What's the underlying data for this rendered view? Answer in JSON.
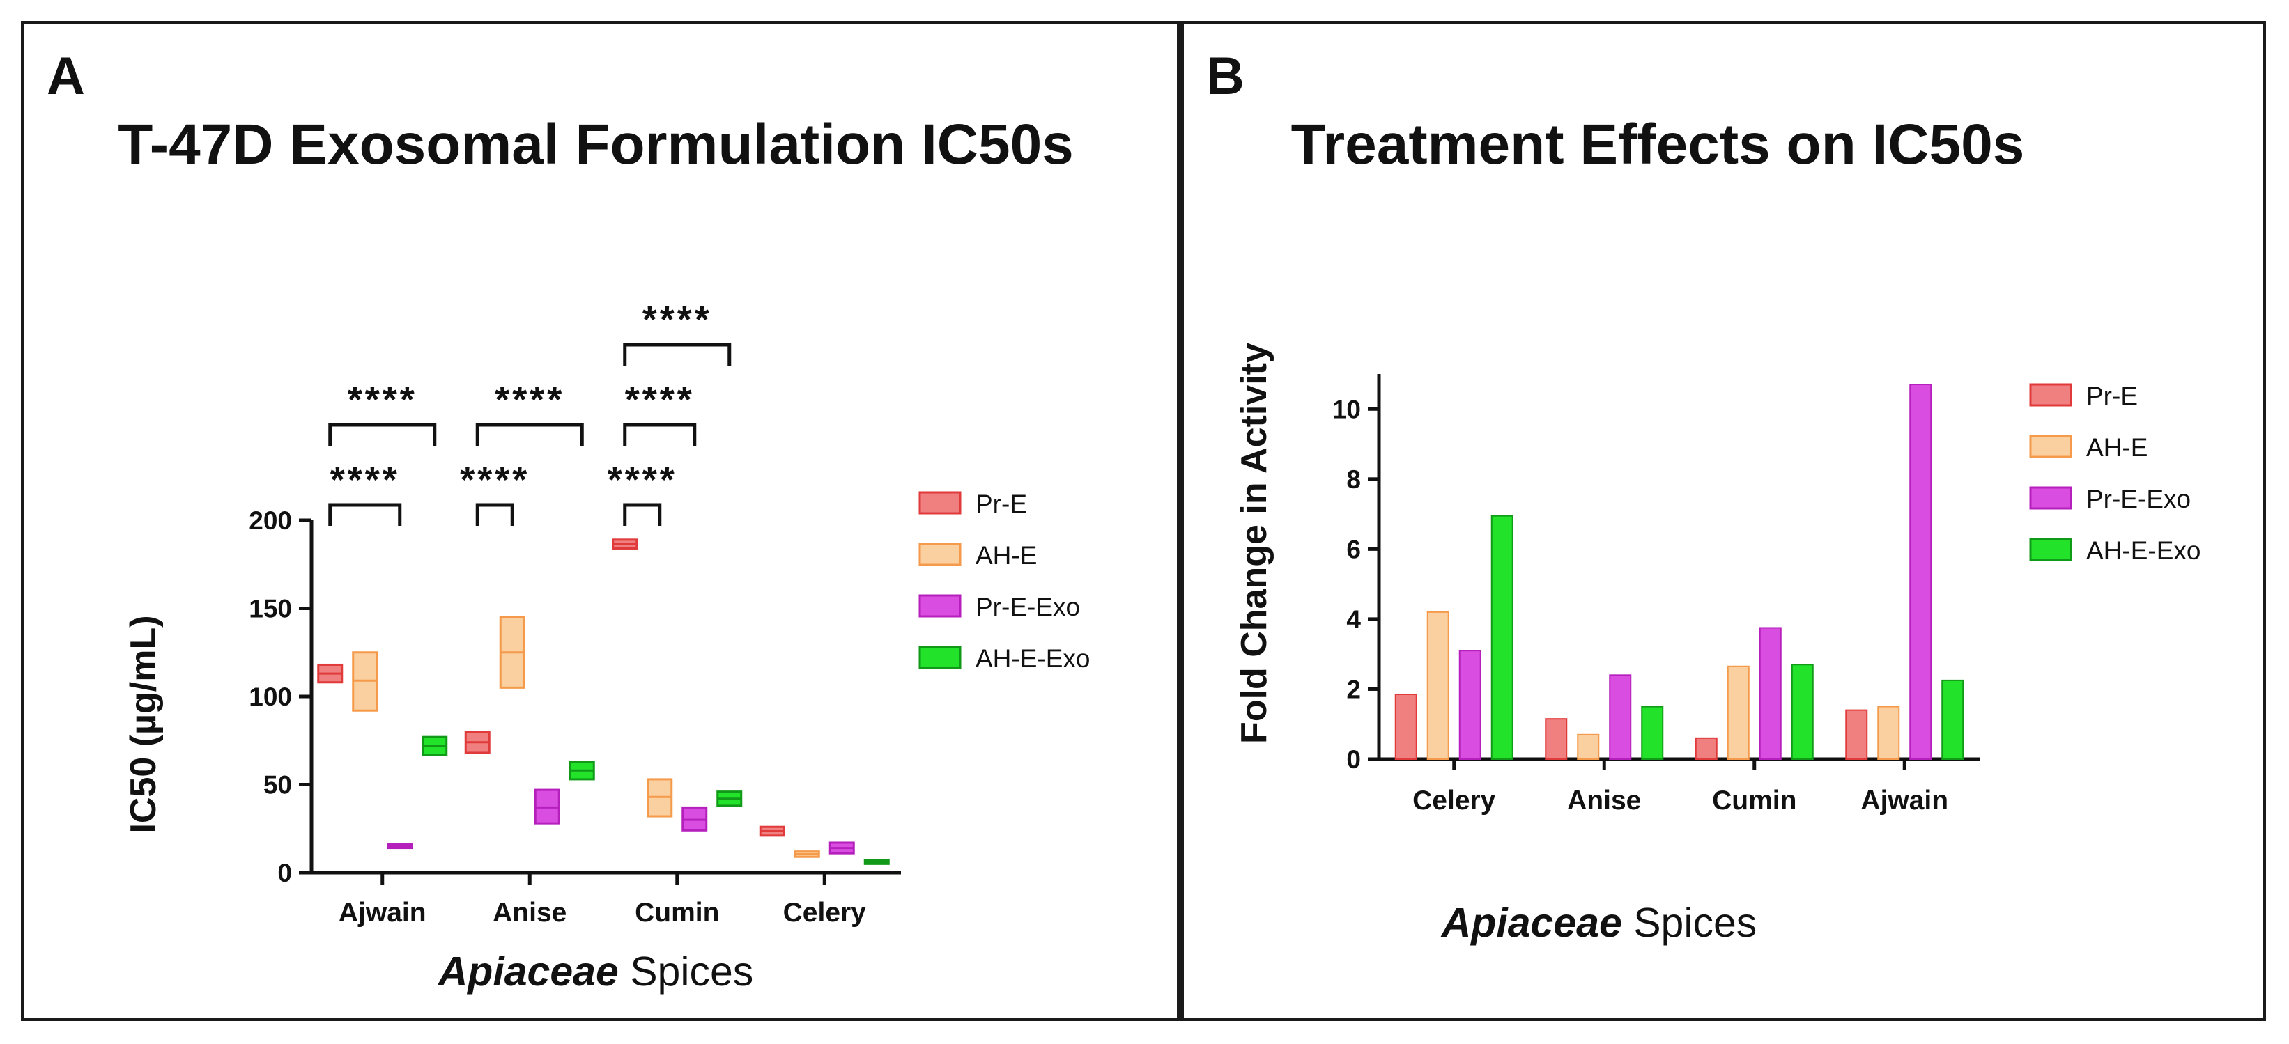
{
  "chart_data": [
    {
      "panel": "A",
      "type": "floating-bar",
      "title": "T-47D Exosomal Formulation IC50s",
      "ylabel": "IC50 (µg/mL)",
      "xlabel_italic": "Apiaceae",
      "xlabel_rest": " Spices",
      "ylim": [
        0,
        200
      ],
      "yticks": [
        0,
        50,
        100,
        150,
        200
      ],
      "categories": [
        "Ajwain",
        "Anise",
        "Cumin",
        "Celery"
      ],
      "series": [
        {
          "name": "Pr-E",
          "fill": "#f08080",
          "stroke": "#e03a3a",
          "boxes": [
            {
              "min": 108,
              "mid": 113,
              "max": 118
            },
            {
              "min": 68,
              "mid": 74,
              "max": 80
            },
            {
              "min": 184,
              "mid": 186.5,
              "max": 189
            },
            {
              "min": 21,
              "mid": 23.5,
              "max": 26
            }
          ]
        },
        {
          "name": "AH-E",
          "fill": "#fad0a0",
          "stroke": "#f59a4a",
          "boxes": [
            {
              "min": 92,
              "mid": 109,
              "max": 125
            },
            {
              "min": 105,
              "mid": 125,
              "max": 145
            },
            {
              "min": 32,
              "mid": 43,
              "max": 53
            },
            {
              "min": 9,
              "mid": 10.5,
              "max": 12
            }
          ]
        },
        {
          "name": "Pr-E-Exo",
          "fill": "#d94ee0",
          "stroke": "#b520bd",
          "boxes": [
            {
              "min": 14,
              "mid": 15,
              "max": 16
            },
            {
              "min": 28,
              "mid": 37,
              "max": 47
            },
            {
              "min": 24,
              "mid": 30,
              "max": 37
            },
            {
              "min": 11,
              "mid": 14,
              "max": 17
            }
          ]
        },
        {
          "name": "AH-E-Exo",
          "fill": "#22e22a",
          "stroke": "#109a18",
          "boxes": [
            {
              "min": 67,
              "mid": 72,
              "max": 77
            },
            {
              "min": 53,
              "mid": 58,
              "max": 63
            },
            {
              "min": 38,
              "mid": 42,
              "max": 46
            },
            {
              "min": 5,
              "mid": 6,
              "max": 7
            }
          ]
        }
      ],
      "significance": [
        {
          "category": "Ajwain",
          "from_series": 0,
          "to_series": 2,
          "label": "****"
        },
        {
          "category": "Ajwain",
          "from_series": 0,
          "to_series": 3,
          "label": "****"
        },
        {
          "category": "Anise",
          "from_series": 0,
          "to_series": 1,
          "label": "****"
        },
        {
          "category": "Anise",
          "from_series": 0,
          "to_series": 3,
          "label": "****"
        },
        {
          "category": "Cumin",
          "from_series": 0,
          "to_series": 1,
          "label": "****"
        },
        {
          "category": "Cumin",
          "from_series": 0,
          "to_series": 2,
          "label": "****"
        },
        {
          "category": "Cumin",
          "from_series": 0,
          "to_series": 3,
          "label": "****"
        }
      ]
    },
    {
      "panel": "B",
      "type": "bar",
      "title": "Treatment Effects on IC50s",
      "ylabel": "Fold Change in Activity",
      "xlabel_italic": "Apiaceae",
      "xlabel_rest": " Spices",
      "ylim": [
        0,
        11
      ],
      "yticks": [
        0,
        2,
        4,
        6,
        8,
        10
      ],
      "categories": [
        "Celery",
        "Anise",
        "Cumin",
        "Ajwain"
      ],
      "series": [
        {
          "name": "Pr-E",
          "fill": "#f08080",
          "stroke": "#e03a3a",
          "values": [
            1.85,
            1.15,
            0.6,
            1.4
          ]
        },
        {
          "name": "AH-E",
          "fill": "#fad0a0",
          "stroke": "#f59a4a",
          "values": [
            4.2,
            0.7,
            2.65,
            1.5
          ]
        },
        {
          "name": "Pr-E-Exo",
          "fill": "#d94ee0",
          "stroke": "#b520bd",
          "values": [
            3.1,
            2.4,
            3.75,
            10.7
          ]
        },
        {
          "name": "AH-E-Exo",
          "fill": "#22e22a",
          "stroke": "#109a18",
          "values": [
            6.95,
            1.5,
            2.7,
            2.25
          ]
        }
      ]
    }
  ],
  "panel_letters": [
    "A",
    "B"
  ]
}
